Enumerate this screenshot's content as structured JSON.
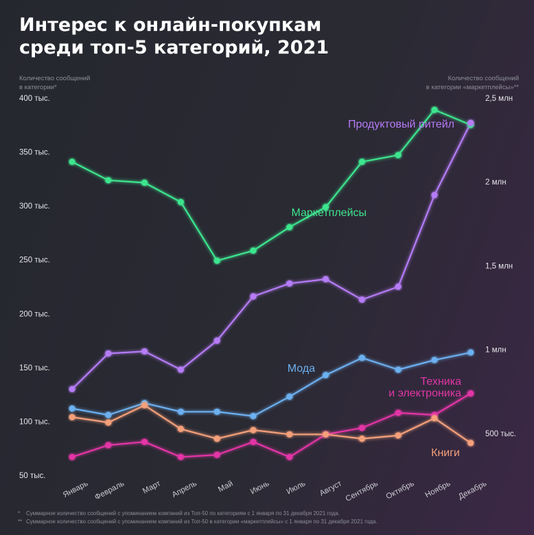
{
  "title_lines": [
    "Интерес к онлайн-покупкам",
    "среди топ-5 категорий, 2021"
  ],
  "footnotes": [
    {
      "mark": "*",
      "text": "Суммарное количество сообщений с упоминанием компаний из Топ-50 по категориям с 1 января по 31 декабря 2021 года."
    },
    {
      "mark": "**",
      "text": "Суммарное количество сообщений с упоминанием компаний из Топ-50 в категории «маркетплейсы» с 1 января по 31 декабря 2021 года."
    }
  ],
  "chart_data": {
    "type": "line",
    "categories": [
      "Январь",
      "Февраль",
      "Март",
      "Апрель",
      "Май",
      "Июнь",
      "Июль",
      "Август",
      "Сентябрь",
      "Октябрь",
      "Ноябрь",
      "Декабрь"
    ],
    "left_axis": {
      "label_lines": [
        "Количество сообщений",
        "в категории*"
      ],
      "range": [
        50000,
        400000
      ],
      "ticks": [
        50000,
        100000,
        150000,
        200000,
        250000,
        300000,
        350000,
        400000
      ],
      "tick_labels": [
        "50 тыс.",
        "100 тыс.",
        "150 тыс.",
        "200 тыс.",
        "250 тыс.",
        "300 тыс.",
        "350 тыс.",
        "400 тыс."
      ]
    },
    "right_axis": {
      "label_lines": [
        "Количество сообщений",
        "в категории «маркетплейсы»**"
      ],
      "range": [
        250000,
        2500000
      ],
      "ticks": [
        500000,
        1000000,
        1500000,
        2000000,
        2500000
      ],
      "tick_labels": [
        "500 тыс.",
        "1 млн",
        "1,5 млн",
        "2 млн",
        "2,5 млн"
      ]
    },
    "grid": false,
    "series": [
      {
        "name": "Маркетплейсы",
        "axis": "right",
        "color": "#3ee58e",
        "values": [
          2120000,
          2010000,
          1995000,
          1880000,
          1530000,
          1590000,
          1730000,
          1850000,
          2120000,
          2160000,
          2430000,
          2340000
        ]
      },
      {
        "name": "Продуктовый ритейл",
        "axis": "left",
        "color": "#b57bf6",
        "values": [
          130000,
          163000,
          165000,
          148000,
          175000,
          216000,
          228000,
          232000,
          213000,
          225000,
          310000,
          377000
        ]
      },
      {
        "name": "Мода",
        "axis": "left",
        "color": "#6cb0f0",
        "values": [
          112000,
          106000,
          117000,
          109000,
          109000,
          105000,
          123000,
          143000,
          159000,
          148000,
          157000,
          164000
        ]
      },
      {
        "name": "Техника и электроника",
        "axis": "left",
        "color": "#e336a6",
        "values": [
          67000,
          78000,
          81000,
          67000,
          69000,
          81000,
          67000,
          88000,
          94000,
          108000,
          106000,
          126000
        ]
      },
      {
        "name": "Книги",
        "axis": "left",
        "color": "#f4a07a",
        "values": [
          104000,
          99000,
          115000,
          93000,
          84000,
          92000,
          88000,
          88000,
          84000,
          87000,
          103000,
          80000
        ]
      }
    ],
    "series_labels": [
      {
        "series": "Продуктовый ритейл",
        "lines": [
          "Продуктовый ритейл"
        ]
      },
      {
        "series": "Маркетплейсы",
        "lines": [
          "Маркетплейсы"
        ]
      },
      {
        "series": "Мода",
        "lines": [
          "Мода"
        ]
      },
      {
        "series": "Техника и электроника",
        "lines": [
          "Техника",
          "и электроника"
        ]
      },
      {
        "series": "Книги",
        "lines": [
          "Книги"
        ]
      }
    ]
  }
}
